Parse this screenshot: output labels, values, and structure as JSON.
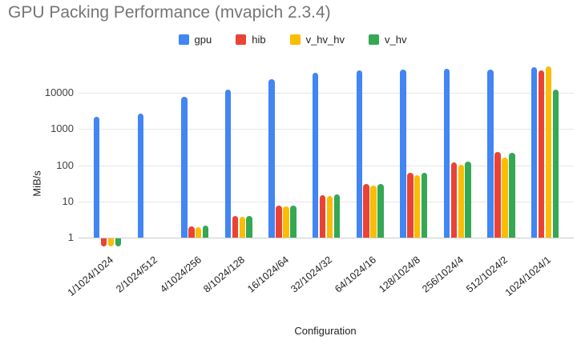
{
  "title": "GPU Packing Performance (mvapich 2.3.4)",
  "axes": {
    "xlabel": "Configuration",
    "ylabel": "MiB/s"
  },
  "colors": {
    "gpu": "#4285F4",
    "hib": "#EA4335",
    "v_hv_hv": "#FBBC04",
    "v_hv": "#34A853",
    "title_text": "#757575",
    "gridline": "#e6e6e6",
    "baseline": "#cccccc"
  },
  "chart_data": {
    "type": "bar",
    "scale": "log",
    "title": "GPU Packing Performance (mvapich 2.3.4)",
    "xlabel": "Configuration",
    "ylabel": "MiB/s",
    "categories": [
      "1/1024/1024",
      "2/1024/512",
      "4/1024/256",
      "8/1024/128",
      "16/1024/64",
      "32/1024/32",
      "64/1024/16",
      "128/1024/8",
      "256/1024/4",
      "512/1024/2",
      "1024/1024/1"
    ],
    "series": [
      {
        "name": "gpu",
        "color": "#4285F4",
        "values": [
          2200,
          2700,
          7600,
          12000,
          24000,
          35000,
          41000,
          43000,
          46000,
          43500,
          51000
        ]
      },
      {
        "name": "hib",
        "color": "#EA4335",
        "values": [
          0.6,
          null,
          2.0,
          3.9,
          7.5,
          15,
          30,
          62,
          118,
          230,
          41000
        ]
      },
      {
        "name": "v_hv_hv",
        "color": "#FBBC04",
        "values": [
          0.6,
          null,
          1.9,
          3.8,
          7.3,
          14,
          28,
          53,
          105,
          160,
          52500
        ]
      },
      {
        "name": "v_hv",
        "color": "#34A853",
        "values": [
          0.6,
          null,
          2.1,
          4.0,
          7.8,
          15.5,
          31,
          62,
          123,
          220,
          12500
        ]
      }
    ],
    "y_ticks": [
      1,
      10,
      100,
      1000,
      10000
    ],
    "ylim_log": [
      1,
      65000
    ],
    "grid": true,
    "legend_position": "top"
  }
}
